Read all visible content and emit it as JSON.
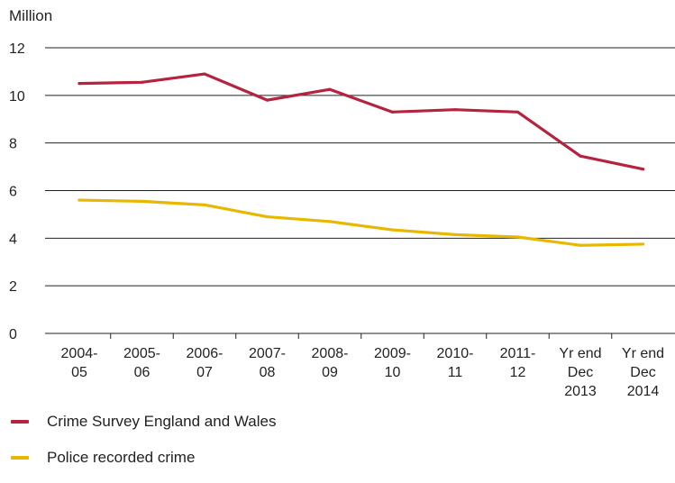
{
  "chart_data": {
    "type": "line",
    "ylabel": "Million",
    "ylim": [
      0,
      12
    ],
    "yticks": [
      0,
      2,
      4,
      6,
      8,
      10,
      12
    ],
    "grid": true,
    "legend_position": "bottom-left",
    "categories": [
      [
        "2004-",
        "05"
      ],
      [
        "2005-",
        "06"
      ],
      [
        "2006-",
        "07"
      ],
      [
        "2007-",
        "08"
      ],
      [
        "2008-",
        "09"
      ],
      [
        "2009-",
        "10"
      ],
      [
        "2010-",
        "11"
      ],
      [
        "2011-",
        "12"
      ],
      [
        "Yr end",
        "Dec",
        "2013"
      ],
      [
        "Yr end",
        "Dec",
        "2014"
      ]
    ],
    "series": [
      {
        "name": "Crime Survey England and Wales",
        "color": "#b5243f",
        "values": [
          10.5,
          10.55,
          10.9,
          9.8,
          10.25,
          9.3,
          9.4,
          9.3,
          7.45,
          6.9
        ]
      },
      {
        "name": "Police recorded crime",
        "color": "#e8b800",
        "values": [
          5.6,
          5.55,
          5.4,
          4.9,
          4.7,
          4.35,
          4.15,
          4.05,
          3.7,
          3.75
        ]
      }
    ]
  }
}
